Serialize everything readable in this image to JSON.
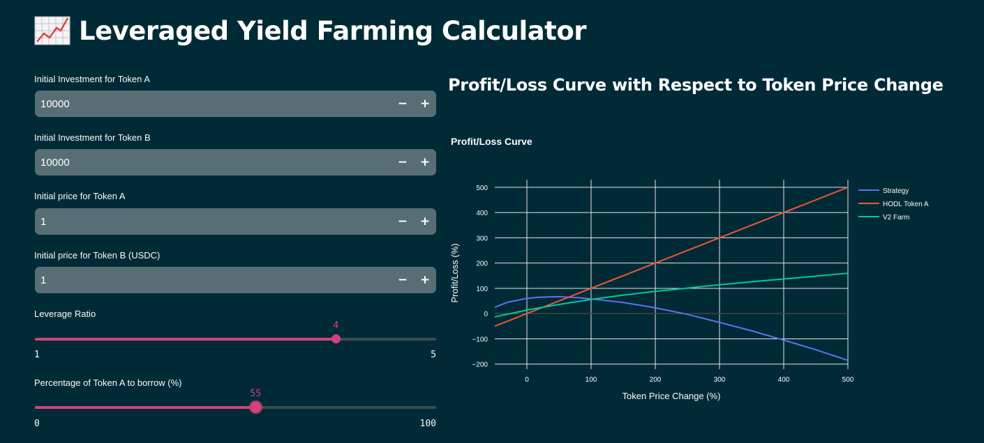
{
  "page": {
    "title": "Leveraged Yield Farming Calculator",
    "title_icon": "chart-increasing-icon"
  },
  "inputs": [
    {
      "label": "Initial Investment for Token A",
      "value": "10000"
    },
    {
      "label": "Initial Investment for Token B",
      "value": "10000"
    },
    {
      "label": "Initial price for Token A",
      "value": "1"
    },
    {
      "label": "Initial price for Token B (USDC)",
      "value": "1"
    }
  ],
  "stepper": {
    "minus": "−",
    "plus": "+"
  },
  "sliders": [
    {
      "label": "Leverage Ratio",
      "value": "4",
      "min": "1",
      "max": "5",
      "fraction": 0.75
    },
    {
      "label": "Percentage of Token A to borrow (%)",
      "value": "55",
      "min": "0",
      "max": "100",
      "fraction": 0.55
    }
  ],
  "colors": {
    "background": "#002b36",
    "input_bg": "#586e75",
    "accent": "#d6407a",
    "strategy": "#636efa",
    "hodl": "#ef553b",
    "v2farm": "#00cc96"
  },
  "chart_heading": "Profit/Loss Curve with Respect to Token Price Change",
  "chart_data": {
    "type": "line",
    "title": "Profit/Loss Curve",
    "xlabel": "Token Price Change (%)",
    "ylabel": "Profit/Loss (%)",
    "xlim": [
      -50,
      500
    ],
    "ylim": [
      -220,
      530
    ],
    "xticks": [
      "0",
      "100",
      "200",
      "300",
      "400",
      "500"
    ],
    "yticks": [
      "−200",
      "−100",
      "0",
      "100",
      "200",
      "300",
      "400",
      "500"
    ],
    "legend_position": "top-right",
    "grid": true,
    "series": [
      {
        "name": "Strategy",
        "color": "#636efa",
        "x": [
          -50,
          -30,
          0,
          20,
          50,
          80,
          100,
          150,
          200,
          250,
          300,
          350,
          400,
          450,
          500
        ],
        "y": [
          25,
          45,
          60,
          65,
          67,
          63,
          58,
          44,
          23,
          -3,
          -35,
          -68,
          -105,
          -143,
          -185
        ]
      },
      {
        "name": "HODL Token A",
        "color": "#ef553b",
        "x": [
          -50,
          500
        ],
        "y": [
          -50,
          500
        ]
      },
      {
        "name": "V2 Farm",
        "color": "#00cc96",
        "x": [
          -50,
          0,
          50,
          100,
          150,
          200,
          250,
          300,
          350,
          400,
          450,
          500
        ],
        "y": [
          -13,
          14,
          36,
          56,
          73,
          88,
          101,
          114,
          126,
          137,
          148,
          160
        ]
      }
    ]
  }
}
